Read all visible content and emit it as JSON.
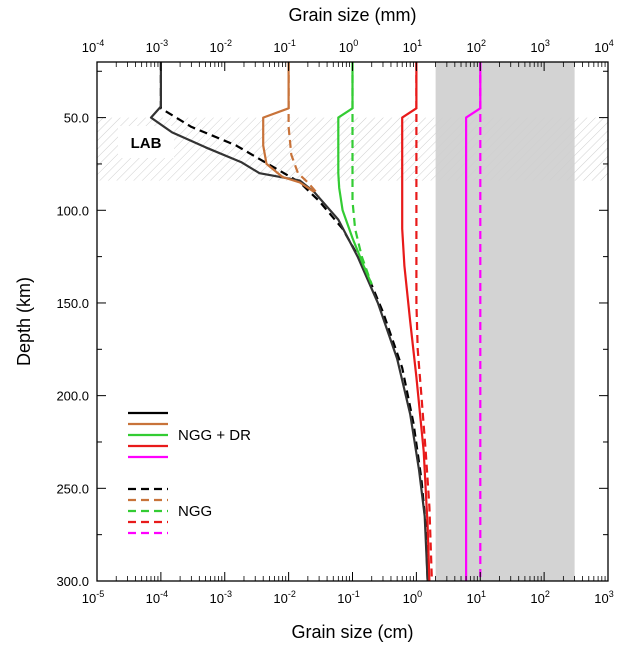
{
  "chart_data": {
    "type": "line",
    "title": "",
    "xlabel_top": "Grain size (mm)",
    "xlabel_bottom": "Grain size (cm)",
    "ylabel": "Depth (km)",
    "x_scale": "log",
    "xlim_cm": [
      1e-05,
      1000
    ],
    "xlim_mm": [
      0.0001,
      10000
    ],
    "ylim": [
      20,
      300
    ],
    "y_inverted": true,
    "x_ticks_bottom": [
      {
        "base": "10",
        "exp": "-5",
        "v": -5
      },
      {
        "base": "10",
        "exp": "-4",
        "v": -4
      },
      {
        "base": "10",
        "exp": "-3",
        "v": -3
      },
      {
        "base": "10",
        "exp": "-2",
        "v": -2
      },
      {
        "base": "10",
        "exp": "-1",
        "v": -1
      },
      {
        "base": "10",
        "exp": "0",
        "v": 0
      },
      {
        "base": "10",
        "exp": "1",
        "v": 1
      },
      {
        "base": "10",
        "exp": "2",
        "v": 2
      },
      {
        "base": "10",
        "exp": "3",
        "v": 3
      }
    ],
    "x_ticks_top": [
      {
        "base": "10",
        "exp": "-4",
        "v": -5
      },
      {
        "base": "10",
        "exp": "-3",
        "v": -4
      },
      {
        "base": "10",
        "exp": "-2",
        "v": -3
      },
      {
        "base": "10",
        "exp": "-1",
        "v": -2
      },
      {
        "base": "10",
        "exp": "0",
        "v": -1
      },
      {
        "base": "10",
        "exp": "1",
        "v": 0
      },
      {
        "base": "10",
        "exp": "2",
        "v": 1
      },
      {
        "base": "10",
        "exp": "3",
        "v": 2
      },
      {
        "base": "10",
        "exp": "4",
        "v": 3
      }
    ],
    "y_ticks": [
      {
        "label": "50.0",
        "v": 50
      },
      {
        "label": "100.0",
        "v": 100
      },
      {
        "label": "150.0",
        "v": 150
      },
      {
        "label": "200.0",
        "v": 200
      },
      {
        "label": "250.0",
        "v": 250
      },
      {
        "label": "300.0",
        "v": 300
      }
    ],
    "grid": false,
    "shaded_region": {
      "x_cm": [
        2,
        300
      ],
      "color": "#d3d3d3"
    },
    "lab_band": {
      "label": "LAB",
      "y": [
        50,
        84
      ]
    },
    "legend": {
      "placement": "lower-left",
      "groups": [
        {
          "label": "NGG + DR",
          "dash": "solid",
          "colors": [
            "#000000",
            "#c8733a",
            "#33cc33",
            "#e81a1a",
            "#ff00ff"
          ]
        },
        {
          "label": "NGG",
          "dash": "dashed",
          "colors": [
            "#000000",
            "#c8733a",
            "#33cc33",
            "#e81a1a",
            "#ff00ff"
          ]
        }
      ]
    },
    "series": [
      {
        "color": "#000000",
        "dash": "dashed",
        "points": [
          [
            0.0001,
            20
          ],
          [
            0.0001,
            45
          ],
          [
            0.0003,
            55
          ],
          [
            0.0015,
            65
          ],
          [
            0.006,
            77
          ],
          [
            0.015,
            85
          ],
          [
            0.03,
            95
          ],
          [
            0.07,
            110
          ],
          [
            0.15,
            130
          ],
          [
            0.3,
            155
          ],
          [
            0.6,
            185
          ],
          [
            0.9,
            215
          ],
          [
            1.2,
            245
          ],
          [
            1.4,
            270
          ],
          [
            1.5,
            300
          ]
        ]
      },
      {
        "color": "#333333",
        "dash": "solid",
        "points": [
          [
            0.0001,
            20
          ],
          [
            0.0001,
            44
          ],
          [
            7e-05,
            50
          ],
          [
            0.00015,
            58
          ],
          [
            0.0005,
            66
          ],
          [
            0.0018,
            74
          ],
          [
            0.0035,
            80
          ],
          [
            0.015,
            84
          ],
          [
            0.025,
            90
          ],
          [
            0.06,
            105
          ],
          [
            0.12,
            125
          ],
          [
            0.25,
            150
          ],
          [
            0.5,
            180
          ],
          [
            0.8,
            210
          ],
          [
            1.1,
            240
          ],
          [
            1.35,
            265
          ],
          [
            1.5,
            300
          ]
        ]
      },
      {
        "color": "#c8733a",
        "dash": "dashed",
        "points": [
          [
            0.01,
            20
          ],
          [
            0.01,
            45
          ],
          [
            0.01,
            55
          ],
          [
            0.011,
            70
          ],
          [
            0.014,
            80
          ],
          [
            0.02,
            85
          ],
          [
            0.03,
            92
          ]
        ]
      },
      {
        "color": "#c8733a",
        "dash": "solid",
        "points": [
          [
            0.01,
            20
          ],
          [
            0.01,
            45
          ],
          [
            0.004,
            50
          ],
          [
            0.004,
            65
          ],
          [
            0.0045,
            75
          ],
          [
            0.008,
            82
          ],
          [
            0.015,
            85
          ],
          [
            0.025,
            90
          ]
        ]
      },
      {
        "color": "#33cc33",
        "dash": "dashed",
        "points": [
          [
            0.1,
            20
          ],
          [
            0.1,
            45
          ],
          [
            0.1,
            60
          ],
          [
            0.1,
            95
          ],
          [
            0.11,
            110
          ],
          [
            0.14,
            125
          ],
          [
            0.2,
            140
          ]
        ]
      },
      {
        "color": "#33cc33",
        "dash": "solid",
        "points": [
          [
            0.1,
            20
          ],
          [
            0.1,
            45
          ],
          [
            0.06,
            50
          ],
          [
            0.06,
            80
          ],
          [
            0.062,
            88
          ],
          [
            0.07,
            100
          ],
          [
            0.1,
            115
          ],
          [
            0.15,
            130
          ],
          [
            0.2,
            140
          ]
        ]
      },
      {
        "color": "#e81a1a",
        "dash": "dashed",
        "points": [
          [
            1,
            20
          ],
          [
            1,
            45
          ],
          [
            1,
            150
          ],
          [
            1.05,
            175
          ],
          [
            1.2,
            200
          ],
          [
            1.4,
            230
          ],
          [
            1.6,
            260
          ],
          [
            1.75,
            300
          ]
        ]
      },
      {
        "color": "#e81a1a",
        "dash": "solid",
        "points": [
          [
            1,
            20
          ],
          [
            1,
            45
          ],
          [
            0.6,
            50
          ],
          [
            0.6,
            110
          ],
          [
            0.65,
            130
          ],
          [
            0.8,
            160
          ],
          [
            1.0,
            190
          ],
          [
            1.3,
            230
          ],
          [
            1.5,
            270
          ],
          [
            1.6,
            300
          ]
        ]
      },
      {
        "color": "#ff00ff",
        "dash": "dashed",
        "points": [
          [
            10,
            20
          ],
          [
            10,
            45
          ],
          [
            10,
            300
          ]
        ]
      },
      {
        "color": "#ff00ff",
        "dash": "solid",
        "points": [
          [
            10,
            20
          ],
          [
            10,
            45
          ],
          [
            6,
            50
          ],
          [
            6,
            300
          ]
        ]
      }
    ]
  }
}
